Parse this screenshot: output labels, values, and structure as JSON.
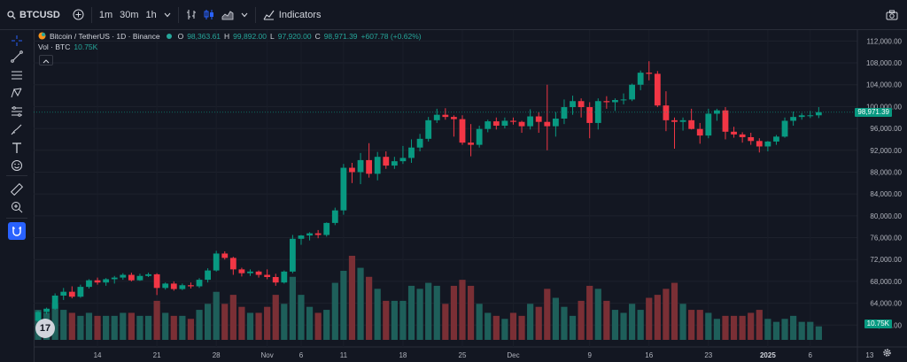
{
  "toolbar": {
    "symbol": "BTCUSD",
    "intervals": [
      "1m",
      "30m",
      "1h"
    ],
    "indicators_label": "Indicators"
  },
  "legend": {
    "title": "Bitcoin / TetherUS · 1D · Binance",
    "o_key": "O",
    "o_val": "98,363.61",
    "h_key": "H",
    "h_val": "99,892.00",
    "l_key": "L",
    "l_val": "97,920.00",
    "c_key": "C",
    "c_val": "98,971.39",
    "change": "+607.78 (+0.62%)",
    "vol_label": "Vol · BTC",
    "vol_value": "10.75K"
  },
  "price_axis": {
    "labels": [
      "112,000.00",
      "108,000.00",
      "104,000.00",
      "100,000.00",
      "96,000.00",
      "92,000.00",
      "88,000.00",
      "84,000.00",
      "80,000.00",
      "76,000.00",
      "72,000.00",
      "68,000.00",
      "64,000.00",
      "60,000.00"
    ],
    "last_price_label": "98,971.39",
    "last_volume_label": "10.75K"
  },
  "time_axis": {
    "labels": [
      "14",
      "21",
      "28",
      "Nov",
      "6",
      "11",
      "18",
      "25",
      "Dec",
      "9",
      "16",
      "23",
      "2025",
      "6",
      "13"
    ]
  },
  "colors": {
    "up": "#089981",
    "down": "#f23645",
    "up_vol": "#1e5f5a",
    "down_vol": "#7a2f35",
    "background": "#131722"
  },
  "chart_data": {
    "type": "candlestick",
    "symbol": "Bitcoin / TetherUS",
    "interval": "1D",
    "exchange": "Binance",
    "ylim": [
      56000,
      114000
    ],
    "y_ticks": [
      60000,
      64000,
      68000,
      72000,
      76000,
      80000,
      84000,
      88000,
      92000,
      96000,
      100000,
      104000,
      108000,
      112000
    ],
    "x_ticks": [
      "14",
      "21",
      "28",
      "Nov",
      "6",
      "11",
      "18",
      "25",
      "Dec",
      "9",
      "16",
      "23",
      "2025",
      "6",
      "13"
    ],
    "last_price": 98971.39,
    "candles": [
      [
        60800,
        62600,
        60200,
        62400,
        1.0
      ],
      [
        62400,
        63200,
        62000,
        63000,
        0.9
      ],
      [
        63000,
        65800,
        62800,
        65400,
        1.2
      ],
      [
        65400,
        66800,
        64600,
        66100,
        1.0
      ],
      [
        66100,
        67100,
        64900,
        65200,
        0.9
      ],
      [
        65200,
        67400,
        65000,
        67000,
        0.8
      ],
      [
        67000,
        68400,
        66700,
        68200,
        0.9
      ],
      [
        68200,
        68700,
        67400,
        67800,
        0.8
      ],
      [
        67800,
        68600,
        67200,
        68400,
        0.8
      ],
      [
        68400,
        69000,
        67600,
        68700,
        0.8
      ],
      [
        68700,
        69500,
        68300,
        69200,
        0.9
      ],
      [
        69200,
        69600,
        68000,
        68200,
        0.9
      ],
      [
        68200,
        69400,
        68100,
        69000,
        0.8
      ],
      [
        69000,
        69600,
        68800,
        69300,
        0.8
      ],
      [
        69300,
        69500,
        65500,
        66800,
        1.3
      ],
      [
        66800,
        67800,
        66500,
        67600,
        0.9
      ],
      [
        67600,
        68000,
        66300,
        66600,
        0.8
      ],
      [
        66600,
        67600,
        66400,
        67300,
        0.8
      ],
      [
        67300,
        67800,
        66700,
        67100,
        0.7
      ],
      [
        67100,
        68600,
        66800,
        68300,
        1.0
      ],
      [
        68300,
        70400,
        67800,
        70000,
        1.2
      ],
      [
        70000,
        73600,
        69800,
        73100,
        1.6
      ],
      [
        73100,
        73500,
        72000,
        72300,
        1.2
      ],
      [
        72300,
        72500,
        69200,
        70200,
        1.5
      ],
      [
        70200,
        70500,
        68900,
        69500,
        1.1
      ],
      [
        69500,
        70200,
        69000,
        69800,
        0.9
      ],
      [
        69800,
        70000,
        68700,
        69200,
        0.9
      ],
      [
        69200,
        70200,
        68400,
        68800,
        1.1
      ],
      [
        68800,
        69400,
        67200,
        67800,
        1.5
      ],
      [
        67800,
        70000,
        67600,
        69800,
        1.2
      ],
      [
        69800,
        76500,
        69500,
        75800,
        2.1
      ],
      [
        75800,
        76500,
        74700,
        76400,
        1.5
      ],
      [
        76400,
        77000,
        75500,
        76800,
        1.1
      ],
      [
        76800,
        77400,
        75900,
        76500,
        0.9
      ],
      [
        76500,
        78800,
        76200,
        78700,
        1.0
      ],
      [
        78700,
        81500,
        78300,
        81000,
        1.9
      ],
      [
        81000,
        89500,
        80200,
        88800,
        2.3
      ],
      [
        88800,
        89700,
        86000,
        88000,
        2.8
      ],
      [
        88000,
        91500,
        85800,
        90200,
        2.4
      ],
      [
        90200,
        93300,
        87000,
        87700,
        2.1
      ],
      [
        87700,
        91700,
        86500,
        90800,
        1.7
      ],
      [
        90800,
        91800,
        88600,
        89200,
        1.3
      ],
      [
        89200,
        90800,
        88600,
        90000,
        1.3
      ],
      [
        90000,
        92800,
        89500,
        90600,
        1.3
      ],
      [
        90600,
        94000,
        89700,
        92500,
        1.8
      ],
      [
        92500,
        95000,
        91800,
        94100,
        1.7
      ],
      [
        94100,
        98100,
        93600,
        97500,
        1.9
      ],
      [
        97500,
        99600,
        97000,
        98500,
        1.8
      ],
      [
        98500,
        99700,
        97600,
        98100,
        1.2
      ],
      [
        98100,
        98400,
        94500,
        97700,
        1.8
      ],
      [
        97700,
        98400,
        93000,
        93400,
        2.0
      ],
      [
        93400,
        96800,
        90900,
        93000,
        1.8
      ],
      [
        93000,
        96500,
        92500,
        95900,
        1.2
      ],
      [
        95900,
        97600,
        95300,
        97300,
        0.9
      ],
      [
        97300,
        98000,
        95800,
        96500,
        0.8
      ],
      [
        96500,
        98000,
        96000,
        97400,
        0.7
      ],
      [
        97400,
        98000,
        96700,
        97200,
        0.9
      ],
      [
        97200,
        97400,
        95200,
        96400,
        0.8
      ],
      [
        96400,
        99500,
        95800,
        98200,
        1.2
      ],
      [
        98200,
        99000,
        95200,
        97200,
        1.1
      ],
      [
        97200,
        104000,
        92000,
        96400,
        1.7
      ],
      [
        96400,
        99000,
        94500,
        97800,
        1.4
      ],
      [
        97800,
        101300,
        96800,
        99900,
        1.1
      ],
      [
        99900,
        102000,
        98500,
        101000,
        0.8
      ],
      [
        101000,
        101500,
        98000,
        99900,
        1.3
      ],
      [
        99900,
        100800,
        94200,
        97000,
        1.8
      ],
      [
        97000,
        101500,
        95800,
        101000,
        1.7
      ],
      [
        101000,
        101900,
        99600,
        100800,
        1.3
      ],
      [
        100800,
        101500,
        99200,
        101200,
        1.0
      ],
      [
        101200,
        102400,
        100400,
        101300,
        0.9
      ],
      [
        101300,
        104200,
        101000,
        104000,
        1.2
      ],
      [
        104000,
        106600,
        103000,
        106200,
        1.0
      ],
      [
        106200,
        108300,
        104800,
        106000,
        1.4
      ],
      [
        106000,
        106500,
        99900,
        100200,
        1.5
      ],
      [
        100200,
        102800,
        95500,
        97500,
        1.7
      ],
      [
        97500,
        98000,
        92300,
        97200,
        1.9
      ],
      [
        97200,
        98000,
        95600,
        97500,
        1.2
      ],
      [
        97500,
        99600,
        95800,
        95900,
        1.0
      ],
      [
        95900,
        97000,
        93200,
        94700,
        1.0
      ],
      [
        94700,
        99600,
        94200,
        98700,
        0.9
      ],
      [
        98700,
        99600,
        97400,
        99300,
        0.7
      ],
      [
        99300,
        99900,
        94000,
        95400,
        0.8
      ],
      [
        95400,
        96300,
        94300,
        94900,
        0.8
      ],
      [
        94900,
        95300,
        93400,
        94400,
        0.8
      ],
      [
        94400,
        95200,
        93000,
        93700,
        0.9
      ],
      [
        93700,
        94200,
        91600,
        92700,
        1.0
      ],
      [
        92700,
        93700,
        91800,
        93600,
        0.7
      ],
      [
        93600,
        94800,
        93000,
        94500,
        0.6
      ],
      [
        94500,
        98000,
        94300,
        97400,
        0.7
      ],
      [
        97400,
        99100,
        96500,
        98100,
        0.8
      ],
      [
        98100,
        98800,
        97600,
        98400,
        0.6
      ],
      [
        98400,
        99200,
        97900,
        98400,
        0.6
      ],
      [
        98400,
        99900,
        97900,
        98971,
        0.45
      ]
    ]
  }
}
